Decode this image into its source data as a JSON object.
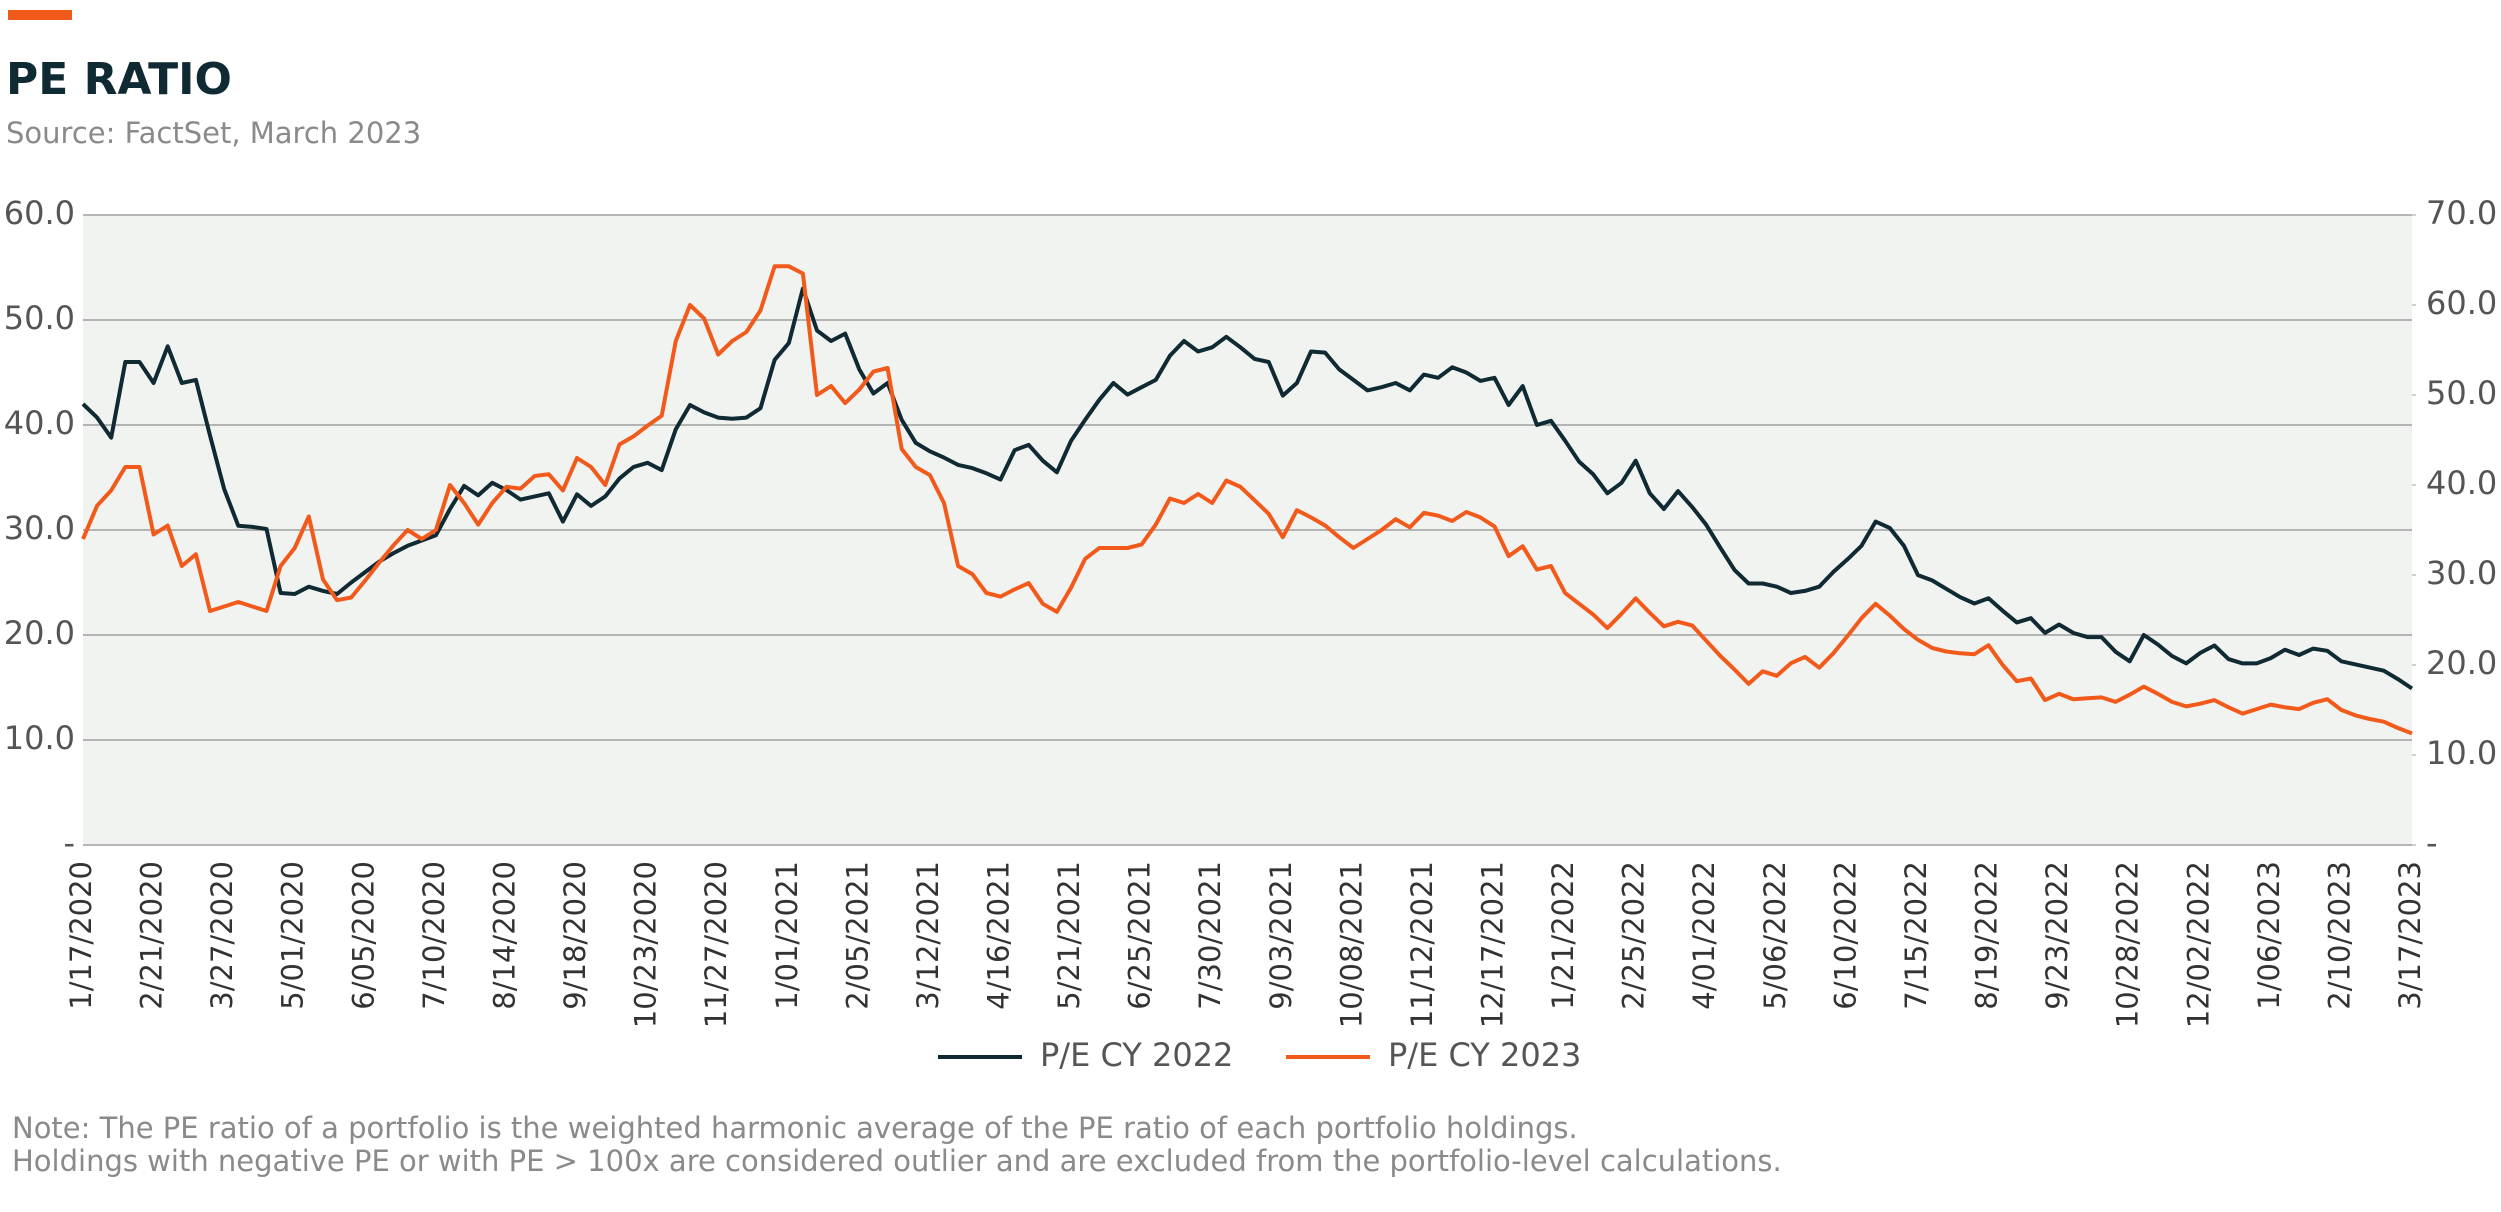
{
  "chart_data": {
    "type": "line",
    "title": "PE RATIO",
    "subtitle": "Source: FactSet, March 2023",
    "notes": [
      "Note: The PE ratio of a portfolio is the weighted harmonic average of the PE ratio of each portfolio holdings.",
      "Holdings with negative PE or with PE > 100x are considered outlier and are excluded from the portfolio-level calculations."
    ],
    "categories": [
      "1/17/2020",
      null,
      null,
      null,
      null,
      "2/21/2020",
      null,
      null,
      null,
      null,
      "3/27/2020",
      null,
      null,
      null,
      null,
      "5/01/2020",
      null,
      null,
      null,
      null,
      "6/05/2020",
      null,
      null,
      null,
      null,
      "7/10/2020",
      null,
      null,
      null,
      null,
      "8/14/2020",
      null,
      null,
      null,
      null,
      "9/18/2020",
      null,
      null,
      null,
      null,
      "10/23/2020",
      null,
      null,
      null,
      null,
      "11/27/2020",
      null,
      null,
      null,
      null,
      "1/01/2021",
      null,
      null,
      null,
      null,
      "2/05/2021",
      null,
      null,
      null,
      null,
      "3/12/2021",
      null,
      null,
      null,
      null,
      "4/16/2021",
      null,
      null,
      null,
      null,
      "5/21/2021",
      null,
      null,
      null,
      null,
      "6/25/2021",
      null,
      null,
      null,
      null,
      "7/30/2021",
      null,
      null,
      null,
      null,
      "9/03/2021",
      null,
      null,
      null,
      null,
      "10/08/2021",
      null,
      null,
      null,
      null,
      "11/12/2021",
      null,
      null,
      null,
      null,
      "12/17/2021",
      null,
      null,
      null,
      null,
      "1/21/2022",
      null,
      null,
      null,
      null,
      "2/25/2022",
      null,
      null,
      null,
      null,
      "4/01/2022",
      null,
      null,
      null,
      null,
      "5/06/2022",
      null,
      null,
      null,
      null,
      "6/10/2022",
      null,
      null,
      null,
      null,
      "7/15/2022",
      null,
      null,
      null,
      null,
      "8/19/2022",
      null,
      null,
      null,
      null,
      "9/23/2022",
      null,
      null,
      null,
      null,
      "10/28/2022",
      null,
      null,
      null,
      null,
      "12/02/2022",
      null,
      null,
      null,
      null,
      "1/06/2023",
      null,
      null,
      null,
      null,
      "2/10/2023",
      null,
      null,
      null,
      null,
      "3/17/2023"
    ],
    "series": [
      {
        "name": "P/E CY 2022",
        "color": "#0f2a32",
        "values": [
          42.0,
          40.7,
          38.8,
          46,
          46,
          44,
          47.5,
          44,
          44.3,
          39,
          33.9,
          30.4,
          30.3,
          30.1,
          24,
          23.9,
          24.6,
          24.2,
          23.9,
          25,
          26,
          27,
          27.8,
          28.5,
          29,
          29.5,
          32,
          34.2,
          33.3,
          34.5,
          33.8,
          32.9,
          33.2,
          33.5,
          30.8,
          33.4,
          32.3,
          33.2,
          34.9,
          36,
          36.4,
          35.7,
          39.6,
          41.9,
          41.2,
          40.7,
          40.6,
          40.7,
          41.6,
          46.2,
          47.8,
          53,
          49,
          48,
          48.7,
          45.3,
          43,
          44,
          40.5,
          38.3,
          37.5,
          36.9,
          36.2,
          35.9,
          35.4,
          34.8,
          37.6,
          38.1,
          36.6,
          35.5,
          38.5,
          40.5,
          42.4,
          44,
          42.9,
          43.6,
          44.3,
          46.6,
          48,
          47,
          47.4,
          48.4,
          47.4,
          46.3,
          46,
          42.8,
          44,
          47,
          46.9,
          45.3,
          44.3,
          43.3,
          43.6,
          44,
          43.3,
          44.8,
          44.5,
          45.5,
          45,
          44.2,
          44.5,
          41.9,
          43.7,
          40,
          40.4,
          38.5,
          36.5,
          35.3,
          33.5,
          34.5,
          36.6,
          33.5,
          32,
          33.7,
          32.2,
          30.5,
          28.3,
          26.2,
          24.9,
          24.9,
          24.6,
          24,
          24.2,
          24.6,
          26,
          27.2,
          28.5,
          30.8,
          30.2,
          28.5,
          25.7,
          25.2,
          24.4,
          23.6,
          23,
          23.5,
          22.3,
          21.2,
          21.6,
          20.2,
          21,
          20.2,
          19.8,
          19.8,
          18.4,
          17.5,
          20,
          19.1,
          18,
          17.3,
          18.3,
          19,
          17.7,
          17.3,
          17.3,
          17.8,
          18.6,
          18.1,
          18.7,
          18.5,
          17.5,
          17.2,
          16.9,
          16.6,
          15.8,
          14.9
        ]
      },
      {
        "name": "P/E CY 2023",
        "color": "#f25a1b",
        "axis": "y2",
        "values": [
          34,
          37.7,
          39.4,
          42,
          42,
          34.5,
          35.5,
          31,
          32.3,
          26,
          26.5,
          27,
          26.5,
          26,
          31,
          33,
          36.5,
          29.5,
          27.2,
          27.5,
          29.4,
          31.4,
          33.3,
          35,
          34,
          35,
          40,
          38,
          35.6,
          38,
          39.8,
          39.6,
          41,
          41.2,
          39.4,
          43,
          42,
          40,
          44.5,
          45.4,
          46.6,
          47.7,
          56,
          60,
          58.5,
          54.5,
          56,
          57,
          59.4,
          64.3,
          64.3,
          63.5,
          50,
          51,
          49.1,
          50.6,
          52.6,
          53,
          44,
          42,
          41.1,
          38,
          31,
          30.1,
          28,
          27.6,
          28.4,
          29.1,
          26.8,
          25.9,
          28.6,
          31.8,
          33,
          33,
          33,
          33.4,
          35.6,
          38.5,
          38,
          39,
          38,
          40.5,
          39.8,
          38.3,
          36.8,
          34.2,
          37.2,
          36.4,
          35.5,
          34.2,
          33,
          34,
          35,
          36.2,
          35.3,
          36.9,
          36.6,
          36,
          37,
          36.4,
          35.4,
          32.1,
          33.2,
          30.6,
          31,
          28,
          26.8,
          25.6,
          24.1,
          25.7,
          27.4,
          25.8,
          24.3,
          24.8,
          24.4,
          22.7,
          21,
          19.5,
          17.9,
          19.3,
          18.8,
          20.2,
          20.9,
          19.7,
          21.3,
          23.2,
          25.2,
          26.8,
          25.5,
          24,
          22.8,
          21.9,
          21.5,
          21.3,
          21.2,
          22.2,
          20,
          18.2,
          18.5,
          16.1,
          16.8,
          16.2,
          16.3,
          16.4,
          15.9,
          16.7,
          17.6,
          16.8,
          15.9,
          15.4,
          15.7,
          16.1,
          15.3,
          14.6,
          15.1,
          15.6,
          15.3,
          15.1,
          15.8,
          16.2,
          15,
          14.4,
          14,
          13.7,
          13,
          12.4
        ]
      }
    ],
    "ylim": [
      0,
      60
    ],
    "yticks": [
      {
        "value": 0,
        "label": "-"
      },
      {
        "value": 10,
        "label": "10.0"
      },
      {
        "value": 20,
        "label": "20.0"
      },
      {
        "value": 30,
        "label": "30.0"
      },
      {
        "value": 40,
        "label": "40.0"
      },
      {
        "value": 50,
        "label": "50.0"
      },
      {
        "value": 60,
        "label": "60.0"
      }
    ],
    "y2lim": [
      0,
      70
    ],
    "y2ticks": [
      {
        "value": 0,
        "label": "-"
      },
      {
        "value": 10,
        "label": "10.0"
      },
      {
        "value": 20,
        "label": "20.0"
      },
      {
        "value": 30,
        "label": "30.0"
      },
      {
        "value": 40,
        "label": "40.0"
      },
      {
        "value": 50,
        "label": "50.0"
      },
      {
        "value": 60,
        "label": "60.0"
      },
      {
        "value": 70,
        "label": "70.0"
      }
    ],
    "grid": true,
    "legend": "bottom"
  }
}
